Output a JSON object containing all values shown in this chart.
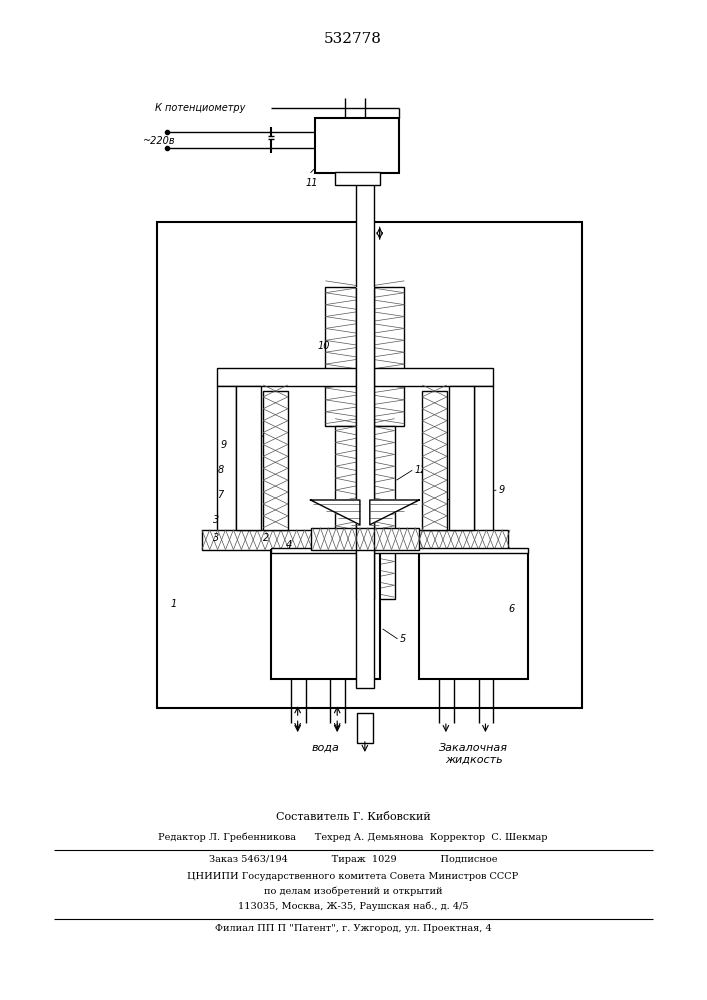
{
  "patent_number": "532778",
  "bg_color": "#ffffff",
  "line_color": "#000000",
  "fig_width": 7.07,
  "fig_height": 10.0,
  "top_label1": "К потенциометру",
  "top_label2": "~220в",
  "water_label": "вода",
  "quench_label": "Закалочная\nжидкость",
  "footer_lines": [
    "Составитель Г. Кибовский",
    "Редактор Л. Гребенникова      Техред А. Демьянова  Корректор  С. Шекмар",
    "Заказ 5463/194              Тираж  1029              Подписное",
    "ЦНИИПИ Государственного комитета Совета Министров СССР",
    "по делам изобретений и открытий",
    "113035, Москва, Ж-35, Раушская наб., д. 4/5",
    "Филиал ПП П \"Патент\", г. Ужгород, ул. Проектная, 4"
  ]
}
